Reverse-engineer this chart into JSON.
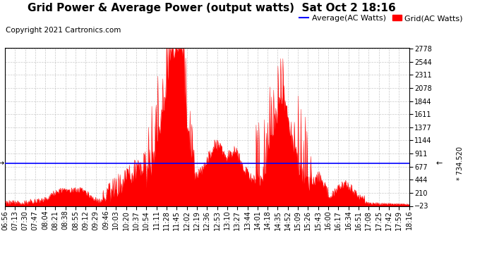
{
  "title": "Grid Power & Average Power (output watts)  Sat Oct 2 18:16",
  "copyright": "Copyright 2021 Cartronics.com",
  "average_value": 734.52,
  "y_min": -23.0,
  "y_max": 2777.7,
  "y_ticks": [
    -23.0,
    210.4,
    443.8,
    677.2,
    910.6,
    1143.9,
    1377.3,
    1610.7,
    1844.1,
    2077.5,
    2310.9,
    2544.3,
    2777.7
  ],
  "x_labels": [
    "06:56",
    "07:13",
    "07:30",
    "07:47",
    "08:04",
    "08:21",
    "08:38",
    "08:55",
    "09:12",
    "09:29",
    "09:46",
    "10:03",
    "10:20",
    "10:37",
    "10:54",
    "11:11",
    "11:28",
    "11:45",
    "12:02",
    "12:19",
    "12:36",
    "12:53",
    "13:10",
    "13:27",
    "13:44",
    "14:01",
    "14:18",
    "14:35",
    "14:52",
    "15:09",
    "15:26",
    "15:43",
    "16:00",
    "16:17",
    "16:34",
    "16:51",
    "17:08",
    "17:25",
    "17:42",
    "17:59",
    "18:16"
  ],
  "legend_avg_label": "Average(AC Watts)",
  "legend_grid_label": "Grid(AC Watts)",
  "avg_color": "#0000ff",
  "fill_color": "#ff0000",
  "grid_line_color": "#bbbbbb",
  "title_fontsize": 11,
  "copyright_fontsize": 7.5,
  "tick_fontsize": 7,
  "legend_fontsize": 8,
  "avg_annotation": "* 734.520"
}
